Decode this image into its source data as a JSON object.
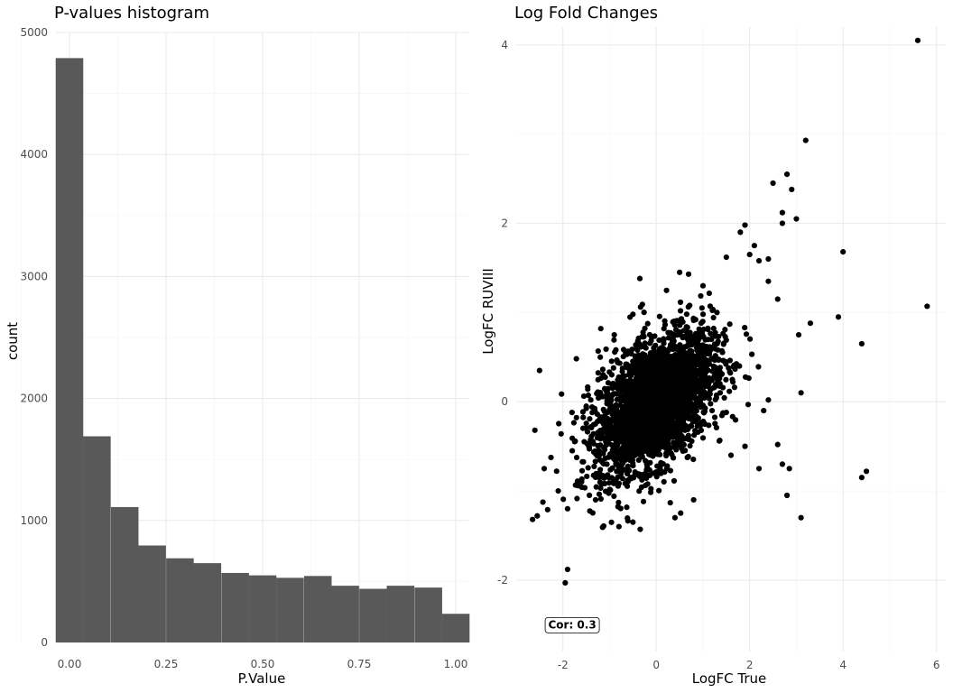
{
  "chart_data": [
    {
      "type": "bar",
      "title": "P-values histogram",
      "xlabel": "P.Value",
      "ylabel": "count",
      "xlim": [
        -0.035,
        1.035
      ],
      "ylim": [
        0,
        5000
      ],
      "x_ticks": [
        "0.00",
        "0.25",
        "0.50",
        "0.75",
        "1.00"
      ],
      "y_ticks": [
        "0",
        "1000",
        "2000",
        "3000",
        "4000",
        "5000"
      ],
      "bin_width": 0.0714,
      "categories": [
        "0.000",
        "0.071",
        "0.143",
        "0.214",
        "0.286",
        "0.357",
        "0.429",
        "0.500",
        "0.571",
        "0.643",
        "0.714",
        "0.786",
        "0.857",
        "0.929",
        "1.000"
      ],
      "values": [
        4790,
        1690,
        1110,
        795,
        690,
        650,
        570,
        550,
        530,
        545,
        465,
        440,
        465,
        450,
        235
      ],
      "grid": true,
      "color": "#595959"
    },
    {
      "type": "scatter",
      "title": "Log Fold Changes",
      "xlabel": "LogFC True",
      "ylabel": "LogFC RUVIII",
      "xlim": [
        -3.0,
        6.2
      ],
      "ylim": [
        -2.8,
        4.2
      ],
      "x_ticks": [
        "-2",
        "0",
        "2",
        "4",
        "6"
      ],
      "y_ticks": [
        "-2",
        "0",
        "2",
        "4"
      ],
      "annotation": "Cor: 0.3",
      "annotation_position": [
        -1.8,
        -2.5
      ],
      "grid": true,
      "color": "#000000",
      "points": [
        [
          5.6,
          4.05
        ],
        [
          3.2,
          2.93
        ],
        [
          2.8,
          2.55
        ],
        [
          2.9,
          2.38
        ],
        [
          2.5,
          2.45
        ],
        [
          2.7,
          2.12
        ],
        [
          2.7,
          2.0
        ],
        [
          3.0,
          2.05
        ],
        [
          1.9,
          1.98
        ],
        [
          1.8,
          1.9
        ],
        [
          4.0,
          1.68
        ],
        [
          2.1,
          1.75
        ],
        [
          2.0,
          1.65
        ],
        [
          2.4,
          1.6
        ],
        [
          2.2,
          1.58
        ],
        [
          1.5,
          1.62
        ],
        [
          5.8,
          1.07
        ],
        [
          2.6,
          1.15
        ],
        [
          2.4,
          1.35
        ],
        [
          3.3,
          0.88
        ],
        [
          3.9,
          0.95
        ],
        [
          3.05,
          0.75
        ],
        [
          4.4,
          0.65
        ],
        [
          3.1,
          0.1
        ],
        [
          2.4,
          0.02
        ],
        [
          2.3,
          -0.1
        ],
        [
          2.6,
          -0.48
        ],
        [
          2.7,
          -0.7
        ],
        [
          2.85,
          -0.75
        ],
        [
          2.2,
          -0.75
        ],
        [
          4.5,
          -0.78
        ],
        [
          4.4,
          -0.85
        ],
        [
          2.8,
          -1.05
        ],
        [
          3.1,
          -1.3
        ],
        [
          -2.5,
          0.35
        ],
        [
          -2.6,
          -0.32
        ],
        [
          -2.4,
          -0.75
        ],
        [
          -2.65,
          -1.32
        ],
        [
          -2.55,
          -1.28
        ],
        [
          -1.9,
          -1.88
        ],
        [
          -1.95,
          -2.03
        ],
        [
          -1.9,
          -1.2
        ],
        [
          -2.1,
          -1.0
        ],
        [
          -1.8,
          -0.55
        ],
        [
          -1.5,
          -0.05
        ],
        [
          -1.2,
          0.5
        ],
        [
          -0.9,
          0.75
        ],
        [
          -0.5,
          0.98
        ],
        [
          0.5,
          1.45
        ],
        [
          1.0,
          1.3
        ],
        [
          1.3,
          1.0
        ],
        [
          -0.8,
          -1.4
        ],
        [
          -0.5,
          -1.35
        ],
        [
          -1.3,
          -1.1
        ],
        [
          0.4,
          -1.3
        ],
        [
          0.8,
          -1.1
        ],
        [
          1.6,
          -0.6
        ],
        [
          1.9,
          -0.5
        ]
      ]
    }
  ]
}
